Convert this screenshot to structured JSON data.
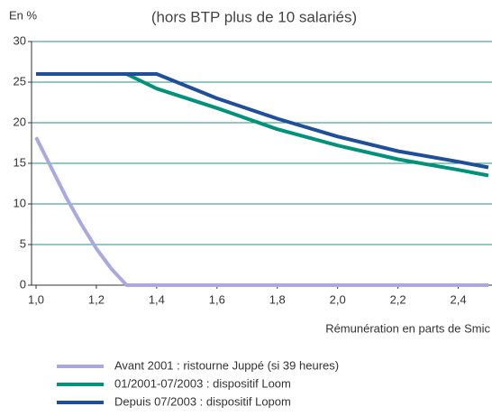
{
  "chart_data": {
    "type": "line",
    "subtitle": "(hors BTP plus de 10 salariés)",
    "ylabel": "En %",
    "xlabel": "Rémunération en parts de Smic",
    "x": [
      1.0,
      1.05,
      1.1,
      1.15,
      1.2,
      1.25,
      1.3,
      1.4,
      1.6,
      1.8,
      2.0,
      2.2,
      2.4,
      2.5
    ],
    "series": [
      {
        "name": "Avant 2001 : ristourne Juppé (si 39 heures)",
        "color": "#a9a9e0",
        "values": [
          18.2,
          14.5,
          10.8,
          7.5,
          4.5,
          2,
          0,
          0,
          0,
          0,
          0,
          0,
          0,
          0
        ]
      },
      {
        "name": "01/2001-07/2003 : dispositif Loom",
        "color": "#00927a",
        "values": [
          26,
          26,
          26,
          26,
          26,
          26,
          26,
          24.2,
          21.8,
          19.2,
          17.2,
          15.5,
          14.2,
          13.5
        ]
      },
      {
        "name": "Depuis 07/2003 : dispositif Lopom",
        "color": "#1f4e9a",
        "values": [
          26,
          26,
          26,
          26,
          26,
          26,
          26,
          26,
          23.0,
          20.5,
          18.3,
          16.5,
          15.2,
          14.5
        ]
      }
    ],
    "xlim": [
      0.985,
      2.5
    ],
    "ylim": [
      0,
      30
    ],
    "xticks": [
      {
        "value": 1.0,
        "label": "1,0"
      },
      {
        "value": 1.2,
        "label": "1,2"
      },
      {
        "value": 1.4,
        "label": "1,4"
      },
      {
        "value": 1.6,
        "label": "1,6"
      },
      {
        "value": 1.8,
        "label": "1,8"
      },
      {
        "value": 2.0,
        "label": "2,0"
      },
      {
        "value": 2.2,
        "label": "2,2"
      },
      {
        "value": 2.4,
        "label": "2,4"
      }
    ],
    "yticks": [
      0,
      5,
      10,
      15,
      20,
      25,
      30
    ],
    "grid": true,
    "grid_color": "#2a8f7f"
  }
}
